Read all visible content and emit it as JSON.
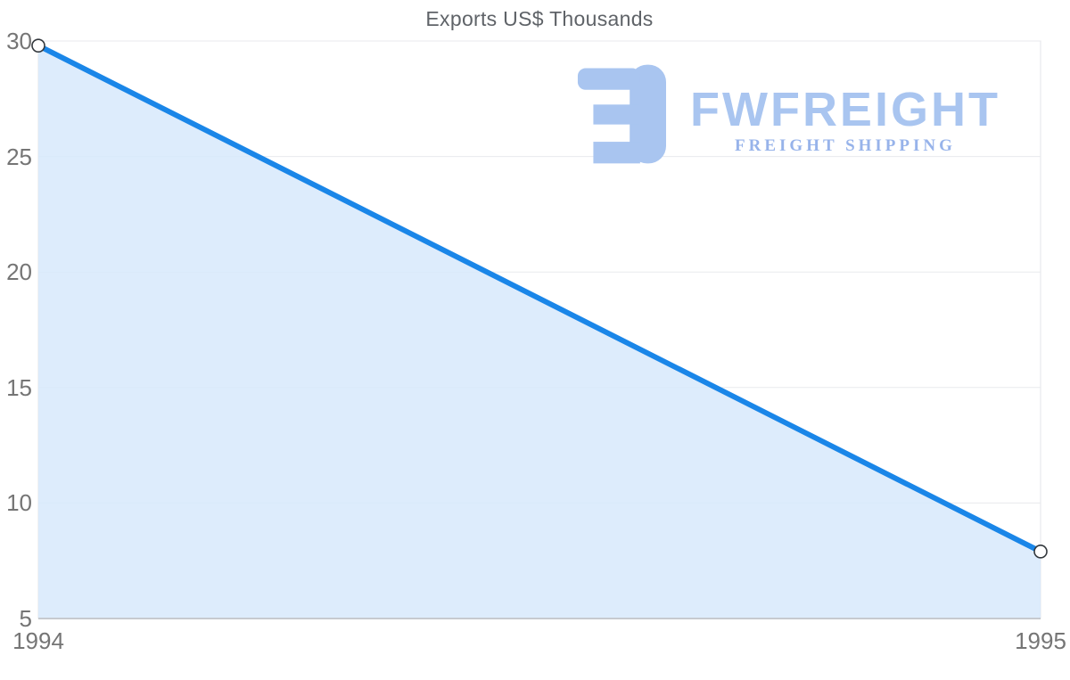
{
  "chart_data": {
    "type": "area",
    "title": "Exports US$ Thousands",
    "categories": [
      "1994",
      "1995"
    ],
    "series": [
      {
        "name": "Exports US$ Thousands",
        "values": [
          29.8,
          7.9
        ]
      }
    ],
    "xlabel": "",
    "ylabel": "",
    "ylim": [
      5,
      30
    ],
    "yticks": [
      5,
      10,
      15,
      20,
      25,
      30
    ],
    "grid": true,
    "legend": false,
    "colors": {
      "line": "#1a86e8",
      "area_fill": "#d7e9fc",
      "marker_fill": "#ffffff",
      "marker_stroke": "#33383d",
      "grid": "#e8eaed",
      "border": "#e3e5e8",
      "axis": "#c6cacf",
      "tick_label": "#757575",
      "title": "#5f6368"
    }
  },
  "watermark": {
    "brand": "FWFREIGHT",
    "tagline": "FREIGHT SHIPPING",
    "brand_color": "#a9c5f0",
    "tagline_color": "#97b3ea",
    "icon_color": "#a9c5f0"
  }
}
